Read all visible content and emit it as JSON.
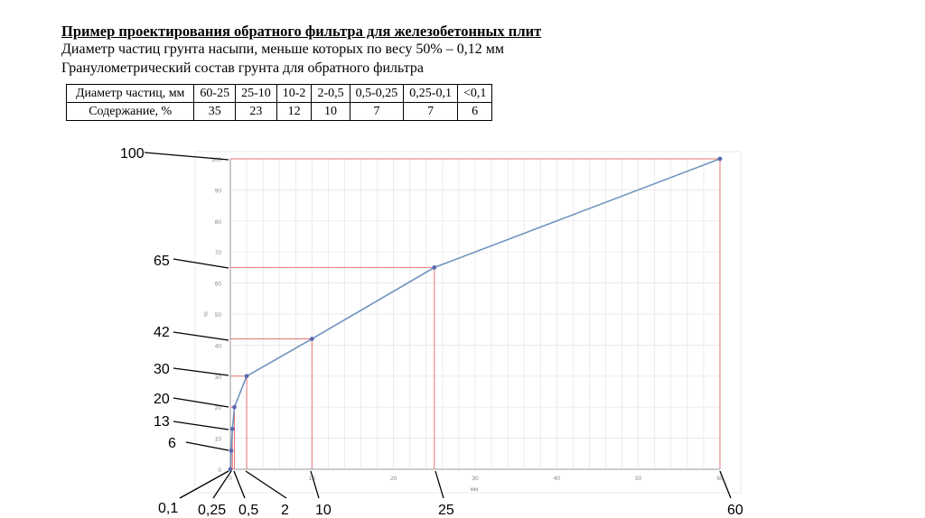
{
  "slide": {
    "title": "Пример проектирования обратного фильтра для железобетонных плит",
    "line1": "Диаметр частиц грунта насыпи, меньше которых по весу 50% – 0,12 мм",
    "line2": "Гранулометрический состав грунта для обратного фильтра"
  },
  "table": {
    "rows": [
      {
        "label": "Диаметр частиц, мм",
        "cells": [
          "60-25",
          "25-10",
          "10-2",
          "2-0,5",
          "0,5-0,25",
          "0,25-0,1",
          "<0,1"
        ]
      },
      {
        "label": "Содержание, %",
        "cells": [
          "35",
          "23",
          "12",
          "10",
          "7",
          "7",
          "6"
        ]
      }
    ]
  },
  "chart_data": {
    "type": "line",
    "xlabel": "мм",
    "ylabel": "%",
    "xlim": [
      0,
      60
    ],
    "ylim": [
      0,
      100
    ],
    "x_ticks": [
      0,
      10,
      20,
      30,
      40,
      50,
      60
    ],
    "y_ticks": [
      0,
      10,
      20,
      30,
      40,
      50,
      60,
      70,
      80,
      90,
      100
    ],
    "grid": true,
    "points": [
      {
        "x": 0.1,
        "y": 6
      },
      {
        "x": 0.25,
        "y": 13
      },
      {
        "x": 0.5,
        "y": 20
      },
      {
        "x": 2,
        "y": 30
      },
      {
        "x": 10,
        "y": 42
      },
      {
        "x": 25,
        "y": 65
      },
      {
        "x": 60,
        "y": 100
      }
    ],
    "callouts_y": [
      "100",
      "65",
      "42",
      "30",
      "20",
      "13",
      "6"
    ],
    "callouts_x": [
      "0,1",
      "0,25",
      "0,5",
      "2",
      "10",
      "25",
      "60"
    ],
    "colors": {
      "line": "#6f93bf",
      "marker": "#5b6bb0",
      "guides": "#e57373",
      "grid": "#e4e4e4"
    }
  }
}
